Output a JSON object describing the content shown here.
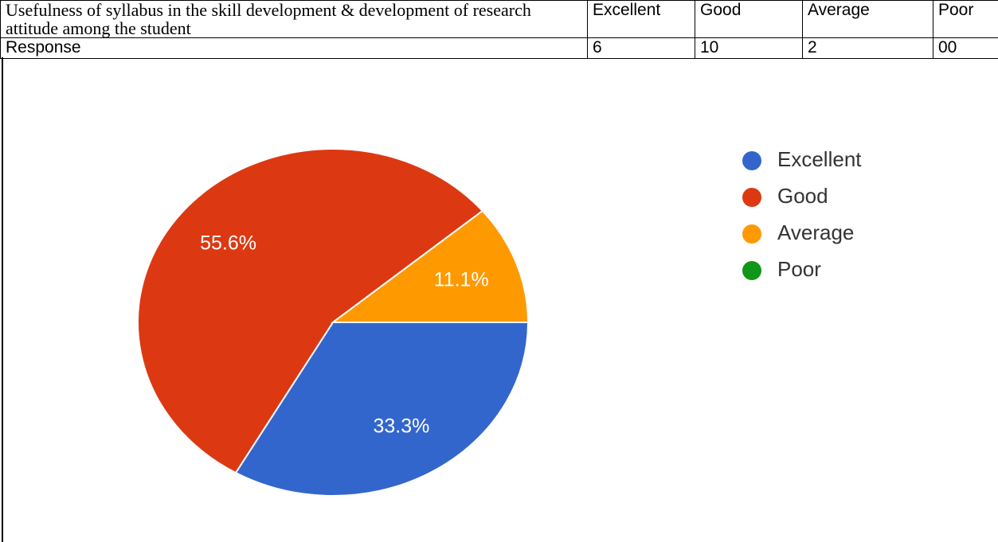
{
  "table": {
    "rows": [
      [
        "Usefulness of syllabus in the skill development & development of research attitude among the student",
        "Excellent",
        "Good",
        "Average",
        "Poor"
      ],
      [
        "Response",
        "6",
        "10",
        "2",
        "00"
      ]
    ]
  },
  "chart_data": {
    "type": "pie",
    "categories": [
      "Excellent",
      "Good",
      "Average",
      "Poor"
    ],
    "values": [
      33.3,
      55.6,
      11.1,
      0
    ],
    "value_labels": [
      "33.3%",
      "55.6%",
      "11.1%",
      null
    ],
    "colors": [
      "#3366cc",
      "#dc3912",
      "#ff9900",
      "#109618"
    ],
    "legend": "right"
  }
}
